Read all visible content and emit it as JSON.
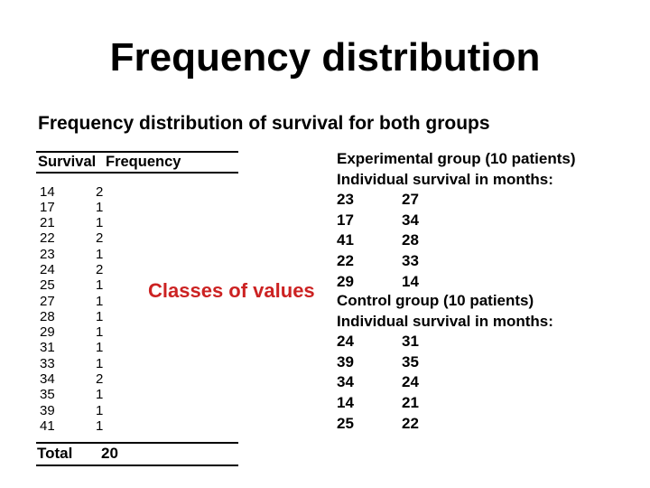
{
  "slide": {
    "title": "Frequency distribution",
    "subtitle": "Frequency distribution of survival for both groups",
    "annotation": "Classes of values",
    "annotation_color": "#cc2222",
    "text_color": "#000000",
    "background_color": "#ffffff"
  },
  "freq_table": {
    "col_headers": [
      "Survival",
      "Frequency"
    ],
    "rows": [
      [
        14,
        2
      ],
      [
        17,
        1
      ],
      [
        21,
        1
      ],
      [
        22,
        2
      ],
      [
        23,
        1
      ],
      [
        24,
        2
      ],
      [
        25,
        1
      ],
      [
        27,
        1
      ],
      [
        28,
        1
      ],
      [
        29,
        1
      ],
      [
        31,
        1
      ],
      [
        33,
        1
      ],
      [
        34,
        2
      ],
      [
        35,
        1
      ],
      [
        39,
        1
      ],
      [
        41,
        1
      ]
    ],
    "total_label": "Total",
    "total_value": "20"
  },
  "experimental_group": {
    "title": "Experimental group (10 patients)",
    "subtitle": "Individual survival in months:",
    "pairs": [
      [
        23,
        27
      ],
      [
        17,
        34
      ],
      [
        41,
        28
      ],
      [
        22,
        33
      ],
      [
        29,
        14
      ]
    ]
  },
  "control_group": {
    "title": "Control group (10 patients)",
    "subtitle": "Individual survival in months:",
    "pairs": [
      [
        24,
        31
      ],
      [
        39,
        35
      ],
      [
        34,
        24
      ],
      [
        14,
        21
      ],
      [
        25,
        22
      ]
    ]
  }
}
